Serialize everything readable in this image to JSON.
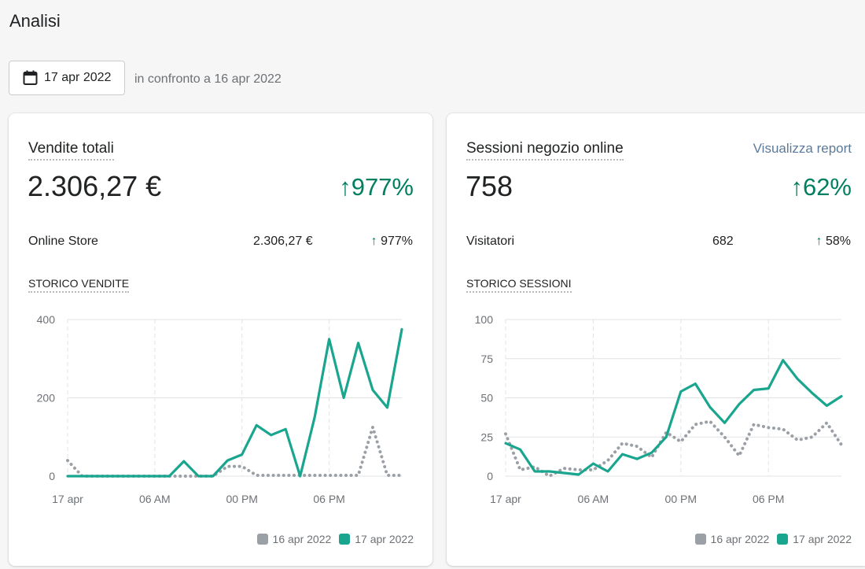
{
  "page": {
    "title": "Analisi"
  },
  "date_picker": {
    "label": "17 apr 2022",
    "icon": "calendar-icon"
  },
  "comparison_text": "in confronto a 16 apr 2022",
  "colors": {
    "current": "#1aa58f",
    "previous": "#9ba0a6",
    "positive": "#008060",
    "link": "#5c7a99"
  },
  "sales_card": {
    "title": "Vendite totali",
    "total": "2.306,27 €",
    "change": "977%",
    "row": {
      "label": "Online Store",
      "value": "2.306,27 €",
      "change": "977%"
    },
    "chart_title": "STORICO VENDITE",
    "legend": [
      "16 apr 2022",
      "17 apr 2022"
    ]
  },
  "sessions_card": {
    "title": "Sessioni negozio online",
    "link": "Visualizza report",
    "total": "758",
    "change": "62%",
    "row": {
      "label": "Visitatori",
      "value": "682",
      "change": "58%"
    },
    "chart_title": "STORICO SESSIONI",
    "legend": [
      "16 apr 2022",
      "17 apr 2022"
    ]
  },
  "chart_data": [
    {
      "type": "line",
      "title": "STORICO VENDITE",
      "x_tick_labels": [
        "17 apr",
        "06 AM",
        "00 PM",
        "06 PM"
      ],
      "x": [
        0,
        1,
        2,
        3,
        4,
        5,
        6,
        7,
        8,
        9,
        10,
        11,
        12,
        13,
        14,
        15,
        16,
        17,
        18,
        19,
        20,
        21,
        22,
        23
      ],
      "ylim": [
        0,
        400
      ],
      "y_ticks": [
        0,
        200,
        400
      ],
      "series": [
        {
          "name": "16 apr 2022",
          "style": "dotted",
          "values": [
            40,
            0,
            0,
            0,
            0,
            0,
            0,
            0,
            0,
            0,
            0,
            25,
            25,
            2,
            2,
            2,
            2,
            2,
            2,
            2,
            2,
            125,
            2,
            2
          ]
        },
        {
          "name": "17 apr 2022",
          "style": "solid",
          "values": [
            0,
            0,
            0,
            0,
            0,
            0,
            0,
            0,
            38,
            0,
            0,
            40,
            55,
            130,
            105,
            120,
            0,
            150,
            350,
            200,
            340,
            220,
            175,
            375
          ]
        }
      ]
    },
    {
      "type": "line",
      "title": "STORICO SESSIONI",
      "x_tick_labels": [
        "17 apr",
        "06 AM",
        "00 PM",
        "06 PM"
      ],
      "x": [
        0,
        1,
        2,
        3,
        4,
        5,
        6,
        7,
        8,
        9,
        10,
        11,
        12,
        13,
        14,
        15,
        16,
        17,
        18,
        19,
        20,
        21,
        22,
        23
      ],
      "ylim": [
        0,
        100
      ],
      "y_ticks": [
        0,
        25,
        50,
        75,
        100
      ],
      "series": [
        {
          "name": "16 apr 2022",
          "style": "dotted",
          "values": [
            27,
            4,
            6,
            0,
            5,
            4,
            4,
            10,
            21,
            19,
            12,
            28,
            22,
            33,
            35,
            25,
            13,
            33,
            31,
            30,
            23,
            25,
            34,
            20
          ]
        },
        {
          "name": "17 apr 2022",
          "style": "solid",
          "values": [
            21,
            17,
            3,
            3,
            2,
            1,
            8,
            3,
            14,
            11,
            15,
            25,
            54,
            59,
            44,
            34,
            46,
            55,
            56,
            74,
            62,
            53,
            45,
            51
          ]
        }
      ]
    }
  ]
}
